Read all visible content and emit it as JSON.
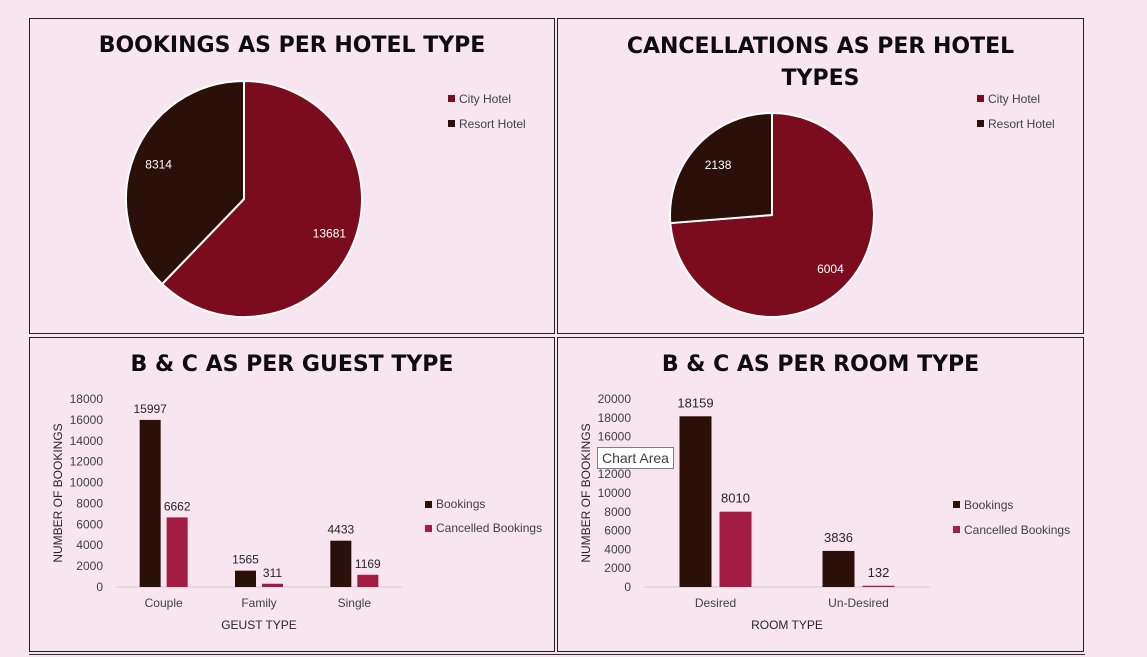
{
  "colors": {
    "dark": "#2b0f09",
    "crimson": "#7a0c1e",
    "rose": "#a21c44"
  },
  "tooltip": "Chart Area",
  "chart_data": [
    {
      "type": "pie",
      "title": "BOOKINGS AS PER HOTEL TYPE",
      "labels": [
        "City Hotel",
        "Resort Hotel"
      ],
      "values": [
        13681,
        8314
      ],
      "legend": "right"
    },
    {
      "type": "pie",
      "title_lines": [
        "CANCELLATIONS AS PER HOTEL",
        "TYPES"
      ],
      "labels": [
        "City Hotel",
        "Resort Hotel"
      ],
      "values": [
        6004,
        2138
      ],
      "legend": "right"
    },
    {
      "type": "bar",
      "title": "B & C AS PER GUEST TYPE",
      "categories": [
        "Couple",
        "Family",
        "Single"
      ],
      "series": [
        {
          "name": "Bookings",
          "values": [
            15997,
            1565,
            4433
          ]
        },
        {
          "name": "Cancelled Bookings",
          "values": [
            6662,
            311,
            1169
          ]
        }
      ],
      "xlabel": "GEUST TYPE",
      "ylabel": "NUMBER OF BOOKINGS",
      "yticks": [
        "0",
        "2000",
        "4000",
        "6000",
        "8000",
        "10000",
        "12000",
        "14000",
        "16000",
        "18000"
      ],
      "ylim": [
        0,
        18000
      ],
      "legend": "right"
    },
    {
      "type": "bar",
      "title": "B & C AS PER ROOM TYPE",
      "categories": [
        "Desired",
        "Un-Desired"
      ],
      "series": [
        {
          "name": "Bookings",
          "values": [
            18159,
            3836
          ]
        },
        {
          "name": "Cancelled Bookings",
          "values": [
            8010,
            132
          ]
        }
      ],
      "xlabel": "ROOM TYPE",
      "ylabel": "NUMBER OF BOOKINGS",
      "yticks": [
        "0",
        "2000",
        "4000",
        "6000",
        "8000",
        "10000",
        "12000",
        "14000",
        "16000",
        "18000",
        "20000"
      ],
      "ylim": [
        0,
        20000
      ],
      "legend": "right"
    }
  ]
}
